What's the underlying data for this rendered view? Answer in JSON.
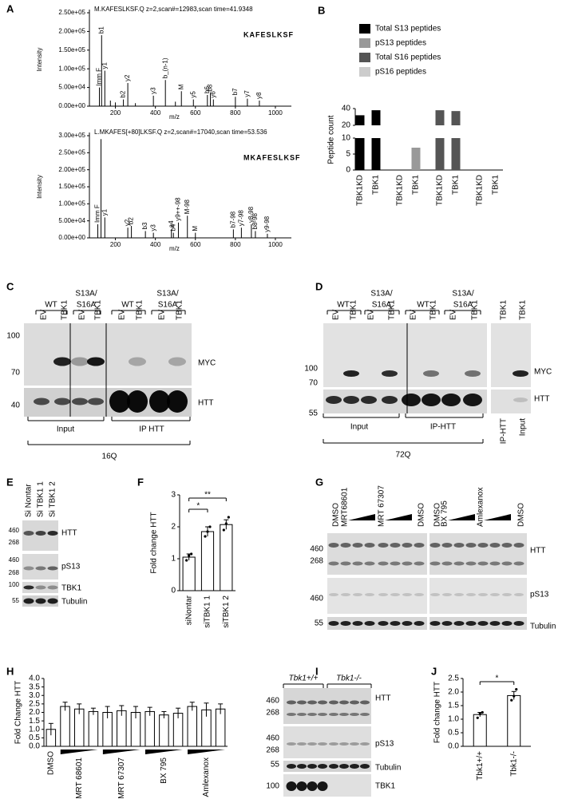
{
  "panel_labels": [
    "A",
    "B",
    "C",
    "D",
    "E",
    "F",
    "G",
    "H",
    "I",
    "J"
  ],
  "chart_data": [
    {
      "type": "spectrum",
      "title": "M.KAFESLKSF.Q z=2,scan#=12983,scan time=41.9348",
      "inset": "KAFESLKSF",
      "y_label": "Intensity",
      "x_label": "m/z",
      "xlim": [
        70,
        1080
      ],
      "xticks": [
        200,
        400,
        600,
        800,
        1000
      ],
      "ylim": [
        0,
        250000
      ],
      "yticks": [
        {
          "value": 0,
          "label": "0.00e+00"
        },
        {
          "value": 50000,
          "label": "5.00e+04"
        },
        {
          "value": 100000,
          "label": "1.00e+05"
        },
        {
          "value": 150000,
          "label": "1.50e+05"
        },
        {
          "value": 200000,
          "label": "2.00e+05"
        },
        {
          "value": 250000,
          "label": "2.50e+05"
        }
      ],
      "x": [
        120,
        131,
        147,
        175,
        200,
        240,
        262,
        300,
        390,
        450,
        500,
        530,
        590,
        660,
        675,
        690,
        800,
        860,
        920
      ],
      "values": [
        50000,
        190000,
        95000,
        15000,
        10000,
        18000,
        62000,
        8000,
        28000,
        70000,
        12000,
        40000,
        18000,
        30000,
        35000,
        18000,
        25000,
        20000,
        15000
      ],
      "peak_labels": [
        "Imm F",
        "b1",
        "y1",
        null,
        null,
        "b2",
        "y2",
        null,
        "y3",
        "b_(n-1)",
        null,
        "M",
        "y5",
        "b6",
        "b8",
        "y6",
        "b7",
        "y7",
        "y8"
      ],
      "peak_colors": [
        "#4e9a2a",
        "#1f3bb3",
        "#d01c1c",
        "#000000",
        "#000000",
        "#1f3bb3",
        "#d01c1c",
        "#000000",
        "#d01c1c",
        "#4e9a2a",
        "#000000",
        "#4e9a2a",
        "#d01c1c",
        "#1f3bb3",
        "#1f3bb3",
        "#d01c1c",
        "#1f3bb3",
        "#d01c1c",
        "#d01c1c"
      ]
    },
    {
      "type": "spectrum",
      "title": "L.MKAFES[+80]LKSF.Q z=2,scan#=17040,scan time=53.536",
      "inset": "MKAFESLKSF",
      "y_label": "Intensity",
      "x_label": "m/z",
      "xlim": [
        70,
        1080
      ],
      "xticks": [
        200,
        400,
        600,
        800,
        1000
      ],
      "ylim": [
        0,
        300000
      ],
      "yticks": [
        {
          "value": 0,
          "label": "0.00e+00"
        },
        {
          "value": 50000,
          "label": "5.00e+04"
        },
        {
          "value": 100000,
          "label": "1.00e+05"
        },
        {
          "value": 150000,
          "label": "1.50e+05"
        },
        {
          "value": 200000,
          "label": "2.00e+05"
        },
        {
          "value": 250000,
          "label": "2.50e+05"
        },
        {
          "value": 300000,
          "label": "3.00e+05"
        }
      ],
      "x": [
        112,
        128,
        147,
        262,
        280,
        350,
        390,
        480,
        490,
        515,
        560,
        600,
        790,
        830,
        880,
        900,
        960
      ],
      "values": [
        40000,
        290000,
        60000,
        30000,
        35000,
        20000,
        15000,
        25000,
        15000,
        45000,
        65000,
        15000,
        25000,
        30000,
        40000,
        20000,
        12000
      ],
      "peak_labels": [
        "Imm F",
        null,
        "y1",
        "y2",
        "b2",
        "b3",
        "y3",
        "a4",
        "b4",
        "y9++-98",
        "M-98",
        "M",
        "b7-98",
        "y7-98",
        "y8-98",
        "b8-98",
        "y9-98"
      ],
      "peak_colors": [
        "#4e9a2a",
        "#000000",
        "#d01c1c",
        "#d01c1c",
        "#1f3bb3",
        "#1f3bb3",
        "#d01c1c",
        "#1f3bb3",
        "#1f3bb3",
        "#d01c1c",
        "#4e9a2a",
        "#4e9a2a",
        "#1f3bb3",
        "#d01c1c",
        "#d01c1c",
        "#1f3bb3",
        "#d01c1c"
      ]
    },
    {
      "type": "broken_bar",
      "y_label": "Peptide count",
      "legend": "top",
      "categories": [
        "TBK1KD",
        "TBK1",
        "TBK1KD",
        "TBK1",
        "TBK1KD",
        "TBK1",
        "TBK1KD",
        "TBK1"
      ],
      "ylim": [
        0,
        40
      ],
      "axis_break": [
        10,
        20
      ],
      "yticks": [
        0,
        5,
        10,
        20,
        40
      ],
      "series": [
        {
          "name": "Total S13 peptides",
          "color": "#000000",
          "values": [
            32,
            38,
            null,
            null,
            null,
            null,
            null,
            null
          ]
        },
        {
          "name": "pS13 peptides",
          "color": "#999999",
          "values": [
            null,
            null,
            0,
            7,
            null,
            null,
            null,
            null
          ]
        },
        {
          "name": "Total S16 peptides",
          "color": "#555555",
          "values": [
            null,
            null,
            null,
            null,
            38,
            37,
            null,
            null
          ]
        },
        {
          "name": "pS16 peptides",
          "color": "#cccccc",
          "values": [
            null,
            null,
            null,
            null,
            null,
            null,
            0,
            0
          ]
        }
      ]
    },
    {
      "type": "bar",
      "y_label": "Fold change HTT",
      "categories": [
        "siNontar",
        "siTBK1 1",
        "siTBK1 2"
      ],
      "values": [
        1.05,
        1.85,
        2.07
      ],
      "errors": [
        0.1,
        0.15,
        0.15
      ],
      "points": [
        [
          0.95,
          1.1,
          1.15
        ],
        [
          1.7,
          1.85,
          2.0
        ],
        [
          1.9,
          2.1,
          2.3
        ]
      ],
      "annotations": [
        "*",
        "**"
      ],
      "ylim": [
        0,
        3
      ],
      "yticks": [
        0,
        1,
        2,
        3
      ]
    },
    {
      "type": "bar",
      "y_label": "Fold Change HTT",
      "categories": [
        "DMSO",
        null,
        null,
        null,
        null,
        null,
        null,
        null,
        null,
        null,
        null,
        null,
        null
      ],
      "group_labels": [
        "MRT 68601",
        "MRT 67307",
        "BX 795",
        "Amlexanox"
      ],
      "values": [
        1.0,
        2.35,
        2.2,
        2.05,
        2.0,
        2.1,
        2.0,
        2.05,
        1.85,
        1.95,
        2.35,
        2.15,
        2.2
      ],
      "errors": [
        0.35,
        0.25,
        0.3,
        0.2,
        0.35,
        0.3,
        0.35,
        0.25,
        0.2,
        0.3,
        0.25,
        0.4,
        0.3
      ],
      "ylim": [
        0,
        4
      ],
      "yticks": [
        {
          "value": 0,
          "label": "0.0"
        },
        0.5,
        {
          "value": 1,
          "label": "1.0"
        },
        1.5,
        {
          "value": 2,
          "label": "2.0"
        },
        2.5,
        {
          "value": 3,
          "label": "3.0"
        },
        3.5,
        {
          "value": 4,
          "label": "4.0"
        }
      ]
    },
    {
      "type": "bar",
      "y_label": "Fold change HTT",
      "categories": [
        "Tbk1+/+",
        "Tbk1-/-"
      ],
      "values": [
        1.17,
        1.87
      ],
      "errors": [
        0.08,
        0.15
      ],
      "points": [
        [
          1.05,
          1.2,
          1.25
        ],
        [
          1.7,
          1.85,
          2.1
        ]
      ],
      "annotations": [
        "*"
      ],
      "ylim": [
        0,
        2.5
      ],
      "yticks": [
        {
          "value": 0,
          "label": "0.0"
        },
        0.5,
        {
          "value": 1,
          "label": "1.0"
        },
        1.5,
        {
          "value": 2,
          "label": "2.0"
        },
        2.5
      ]
    }
  ],
  "blot_C": {
    "groups": [
      [
        "WT"
      ],
      [
        "S13A/",
        "S16A"
      ],
      [
        "WT"
      ],
      [
        "S13A/",
        "S16A"
      ]
    ],
    "lanes": [
      "EV",
      "TBK1",
      "EV",
      "TBK1",
      "EV",
      "TBK1",
      "EV",
      "TBK1"
    ],
    "markers": [
      "100",
      "70",
      "40"
    ],
    "proteins": [
      "MYC",
      "HTT"
    ],
    "fractions": [
      "Input",
      "IP HTT"
    ],
    "condition": "16Q"
  },
  "blot_D": {
    "groups": [
      [
        "WT"
      ],
      [
        "S13A/",
        "S16A"
      ],
      [
        "WT"
      ],
      [
        "S13A/",
        "S16A"
      ]
    ],
    "lanes": [
      "EV",
      "TBK1",
      "EV",
      "TBK1",
      "EV",
      "TBK1",
      "EV",
      "TBK1",
      "TBK1",
      "TBK1"
    ],
    "markers": [
      "100",
      "70",
      "55"
    ],
    "proteins": [
      "MYC",
      "HTT"
    ],
    "fractions": [
      "Input",
      "IP-HTT",
      "IP-HTT",
      "Input"
    ],
    "condition": "72Q"
  },
  "blot_E": {
    "lanes": [
      "Si Nontar",
      "Si TBK1 1",
      "Si TBK1 2"
    ],
    "markers": [
      "460",
      "268",
      "460",
      "268",
      "100",
      "55"
    ],
    "proteins": [
      "HTT",
      "pS13",
      "TBK1",
      "Tubulin"
    ]
  },
  "blot_G": {
    "lanes": [
      "DMSO",
      "MRT68601",
      "MRT 67307",
      "DMSO",
      "DMSO",
      "BX 795",
      "Amlexanox",
      "DMSO"
    ],
    "markers": [
      "460",
      "268",
      "460",
      "55"
    ],
    "proteins": [
      "HTT",
      "pS13",
      "Tubulin"
    ]
  },
  "blot_I": {
    "genotypes": [
      "Tbk1+/+",
      "Tbk1-/-"
    ],
    "markers": [
      "460",
      "268",
      "460",
      "268",
      "55",
      "100"
    ],
    "proteins": [
      "HTT",
      "pS13",
      "Tubulin",
      "TBK1"
    ]
  }
}
